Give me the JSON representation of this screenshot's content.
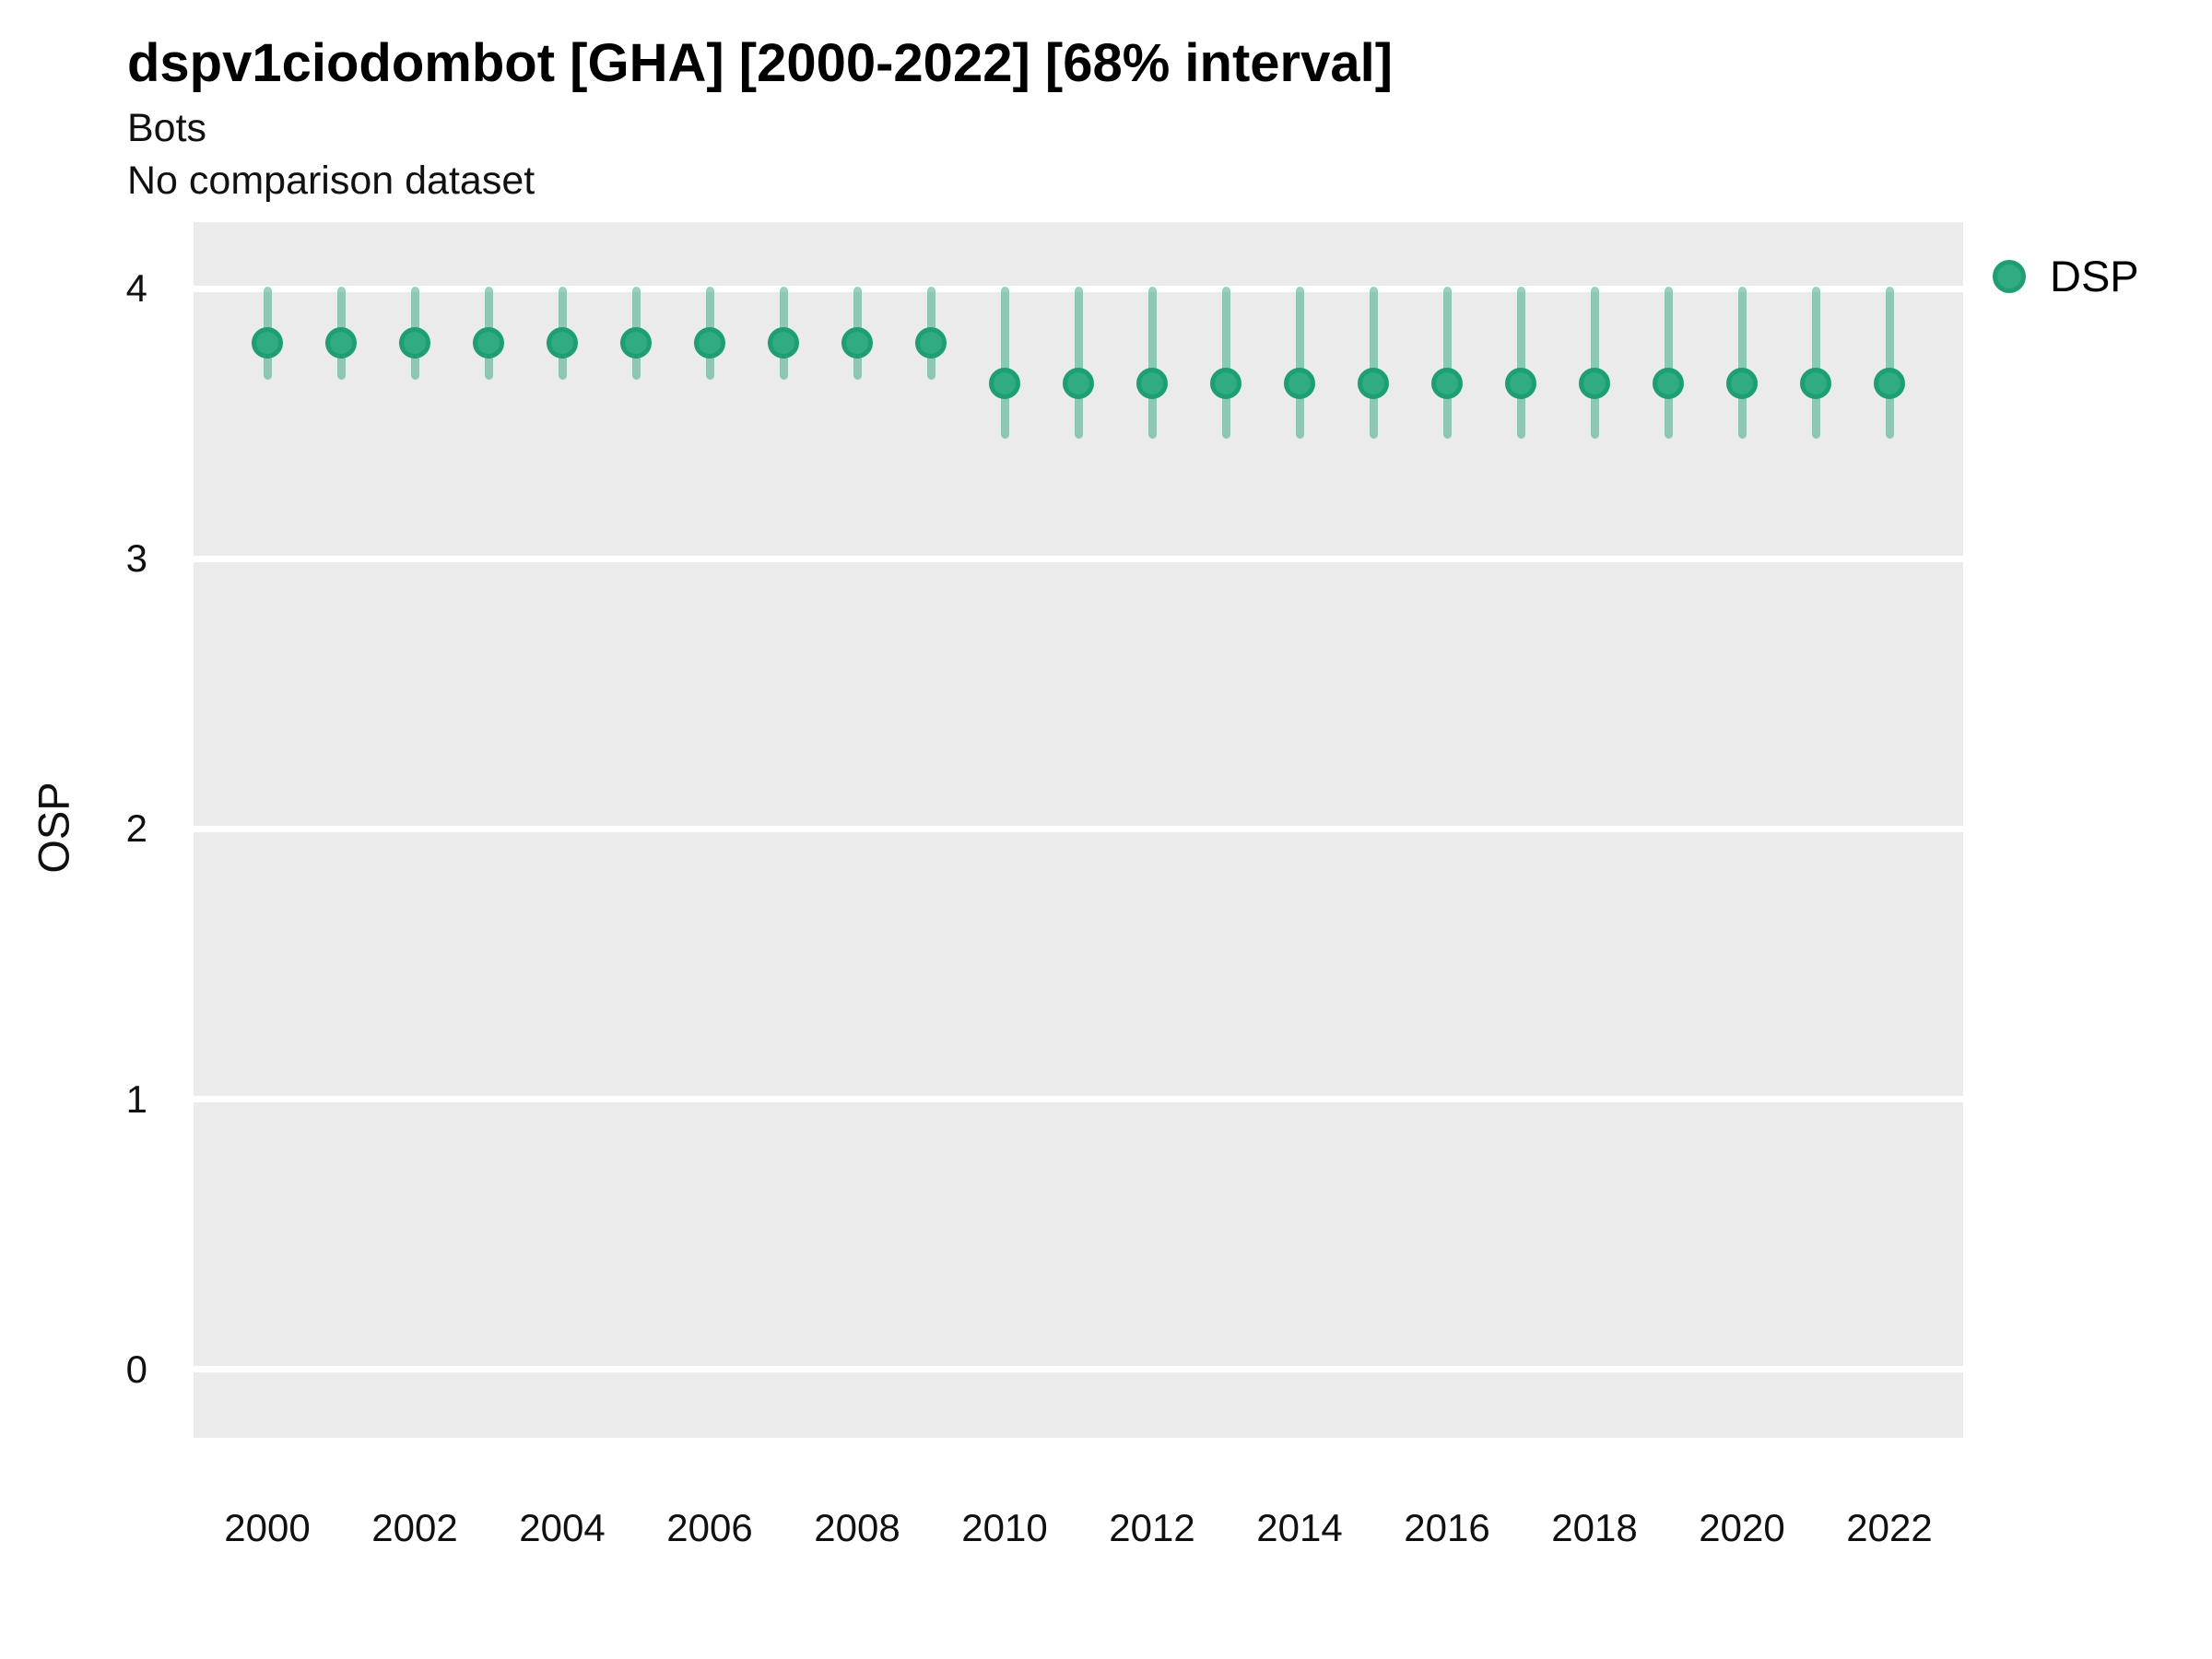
{
  "header": {
    "title": "dspv1ciodombot [GHA] [2000-2022] [68% interval]",
    "subtitle": "Bots",
    "comparison_note": "No comparison dataset"
  },
  "legend": {
    "items": [
      {
        "label": "DSP",
        "color": "#2FAA80"
      }
    ]
  },
  "colors": {
    "panel_bg": "#EBEBEB",
    "gridline": "#FFFFFF",
    "point_fill": "#31AB81",
    "point_stroke": "#1E9E74",
    "interval_bar": "rgba(27,158,119,0.45)",
    "text": "#101010"
  },
  "chart_data": {
    "type": "scatter",
    "title": "dspv1ciodombot [GHA] [2000-2022] [68% interval]",
    "subtitle": "Bots",
    "note": "No comparison dataset",
    "xlabel": "",
    "ylabel": "OSP",
    "interval": "68%",
    "legend_position": "right",
    "grid": "horizontal-major-only",
    "xlim": [
      1999,
      2023
    ],
    "ylim": [
      -0.253,
      4.246
    ],
    "x_ticks": [
      2000,
      2002,
      2004,
      2006,
      2008,
      2010,
      2012,
      2014,
      2016,
      2018,
      2020,
      2022
    ],
    "y_ticks": [
      0,
      1,
      2,
      3,
      4
    ],
    "series": [
      {
        "name": "DSP",
        "points": [
          {
            "year": 2000,
            "value": 3.8,
            "lo": 3.67,
            "hi": 4.0
          },
          {
            "year": 2001,
            "value": 3.8,
            "lo": 3.67,
            "hi": 4.0
          },
          {
            "year": 2002,
            "value": 3.8,
            "lo": 3.67,
            "hi": 4.0
          },
          {
            "year": 2003,
            "value": 3.8,
            "lo": 3.67,
            "hi": 4.0
          },
          {
            "year": 2004,
            "value": 3.8,
            "lo": 3.67,
            "hi": 4.0
          },
          {
            "year": 2005,
            "value": 3.8,
            "lo": 3.67,
            "hi": 4.0
          },
          {
            "year": 2006,
            "value": 3.8,
            "lo": 3.67,
            "hi": 4.0
          },
          {
            "year": 2007,
            "value": 3.8,
            "lo": 3.67,
            "hi": 4.0
          },
          {
            "year": 2008,
            "value": 3.8,
            "lo": 3.67,
            "hi": 4.0
          },
          {
            "year": 2009,
            "value": 3.8,
            "lo": 3.67,
            "hi": 4.0
          },
          {
            "year": 2010,
            "value": 3.65,
            "lo": 3.45,
            "hi": 4.0
          },
          {
            "year": 2011,
            "value": 3.65,
            "lo": 3.45,
            "hi": 4.0
          },
          {
            "year": 2012,
            "value": 3.65,
            "lo": 3.45,
            "hi": 4.0
          },
          {
            "year": 2013,
            "value": 3.65,
            "lo": 3.45,
            "hi": 4.0
          },
          {
            "year": 2014,
            "value": 3.65,
            "lo": 3.45,
            "hi": 4.0
          },
          {
            "year": 2015,
            "value": 3.65,
            "lo": 3.45,
            "hi": 4.0
          },
          {
            "year": 2016,
            "value": 3.65,
            "lo": 3.45,
            "hi": 4.0
          },
          {
            "year": 2017,
            "value": 3.65,
            "lo": 3.45,
            "hi": 4.0
          },
          {
            "year": 2018,
            "value": 3.65,
            "lo": 3.45,
            "hi": 4.0
          },
          {
            "year": 2019,
            "value": 3.65,
            "lo": 3.45,
            "hi": 4.0
          },
          {
            "year": 2020,
            "value": 3.65,
            "lo": 3.45,
            "hi": 4.0
          },
          {
            "year": 2021,
            "value": 3.65,
            "lo": 3.45,
            "hi": 4.0
          },
          {
            "year": 2022,
            "value": 3.65,
            "lo": 3.45,
            "hi": 4.0
          }
        ]
      }
    ]
  }
}
